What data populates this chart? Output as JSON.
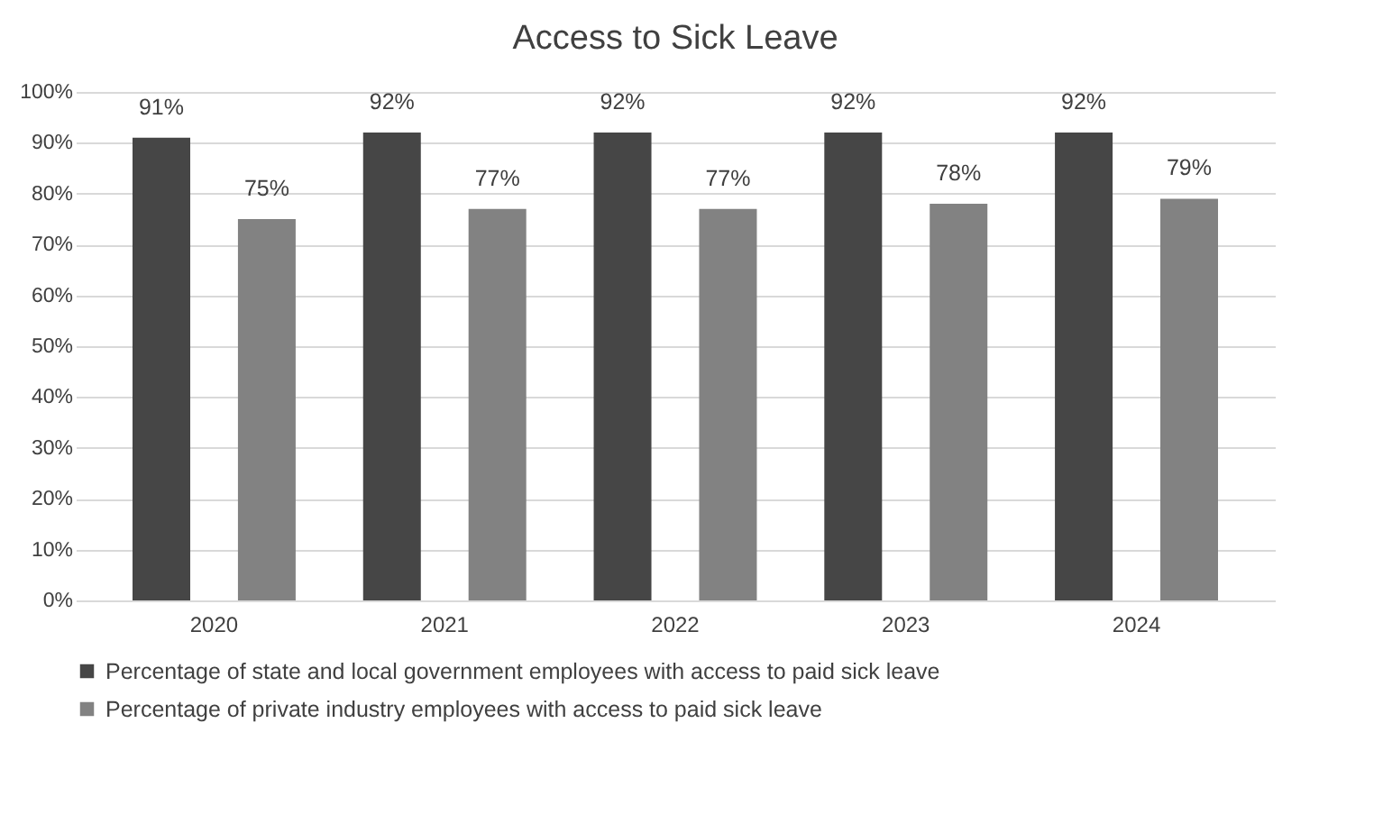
{
  "chart_data": {
    "type": "bar",
    "title": "Access to Sick Leave",
    "categories": [
      "2020",
      "2021",
      "2022",
      "2023",
      "2024"
    ],
    "series": [
      {
        "name": "Percentage of state and local government employees with access to paid sick leave",
        "color": "#464646",
        "values": [
          91,
          92,
          92,
          92,
          92
        ],
        "value_labels": [
          "91%",
          "92%",
          "92%",
          "92%",
          "92%"
        ]
      },
      {
        "name": "Percentage of private industry employees with access to paid sick leave",
        "color": "#828282",
        "values": [
          75,
          77,
          77,
          78,
          79
        ],
        "value_labels": [
          "75%",
          "77%",
          "77%",
          "78%",
          "79%"
        ]
      }
    ],
    "ylim": [
      0,
      100
    ],
    "yticks": [
      {
        "value": 0,
        "label": "0%"
      },
      {
        "value": 10,
        "label": "10%"
      },
      {
        "value": 20,
        "label": "20%"
      },
      {
        "value": 30,
        "label": "30%"
      },
      {
        "value": 40,
        "label": "40%"
      },
      {
        "value": 50,
        "label": "50%"
      },
      {
        "value": 60,
        "label": "60%"
      },
      {
        "value": 70,
        "label": "70%"
      },
      {
        "value": 80,
        "label": "80%"
      },
      {
        "value": 90,
        "label": "90%"
      },
      {
        "value": 100,
        "label": "100%"
      }
    ],
    "grid": "y",
    "legend": "bottom"
  }
}
